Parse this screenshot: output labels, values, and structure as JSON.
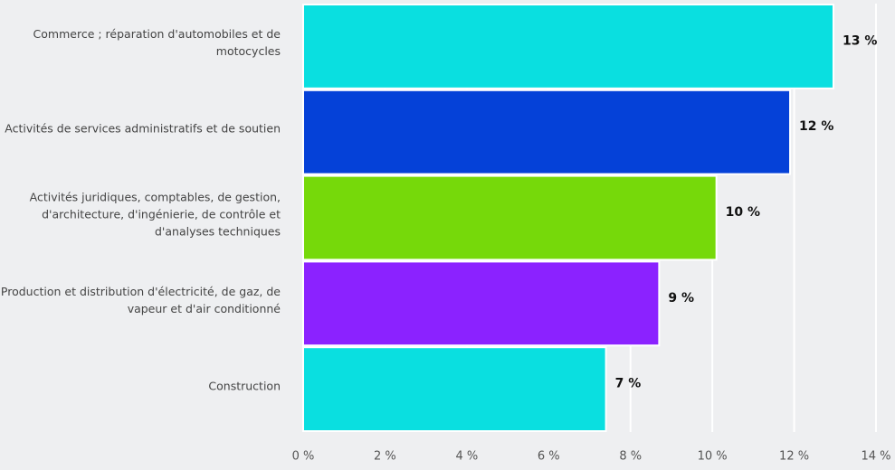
{
  "chart_data": {
    "type": "bar",
    "orientation": "horizontal",
    "categories": [
      "Commerce ; réparation d'automobiles et de motocycles",
      "Activités de services administratifs et de soutien",
      "Activités juridiques, comptables, de gestion, d'architecture, d'ingénierie, de contrôle et d'analyses techniques",
      "Production et distribution d'électricité, de gaz, de vapeur et d'air conditionné",
      "Construction"
    ],
    "values": [
      12.96,
      11.9,
      10.1,
      8.7,
      7.4
    ],
    "value_labels": [
      "13 %",
      "12 %",
      "10 %",
      "9 %",
      "7 %"
    ],
    "colors": [
      "#0adfe0",
      "#0541d8",
      "#76d90a",
      "#8b22ff",
      "#0adfe0"
    ],
    "xlim": [
      0,
      14
    ],
    "xticks": [
      {
        "value": 0,
        "label": "0 %"
      },
      {
        "value": 2,
        "label": "2 %"
      },
      {
        "value": 4,
        "label": "4 %"
      },
      {
        "value": 6,
        "label": "6 %"
      },
      {
        "value": 8,
        "label": "8 %"
      },
      {
        "value": 10,
        "label": "10 %"
      },
      {
        "value": 12,
        "label": "12 %"
      },
      {
        "value": 14,
        "label": "14 %"
      }
    ],
    "grid": true
  }
}
